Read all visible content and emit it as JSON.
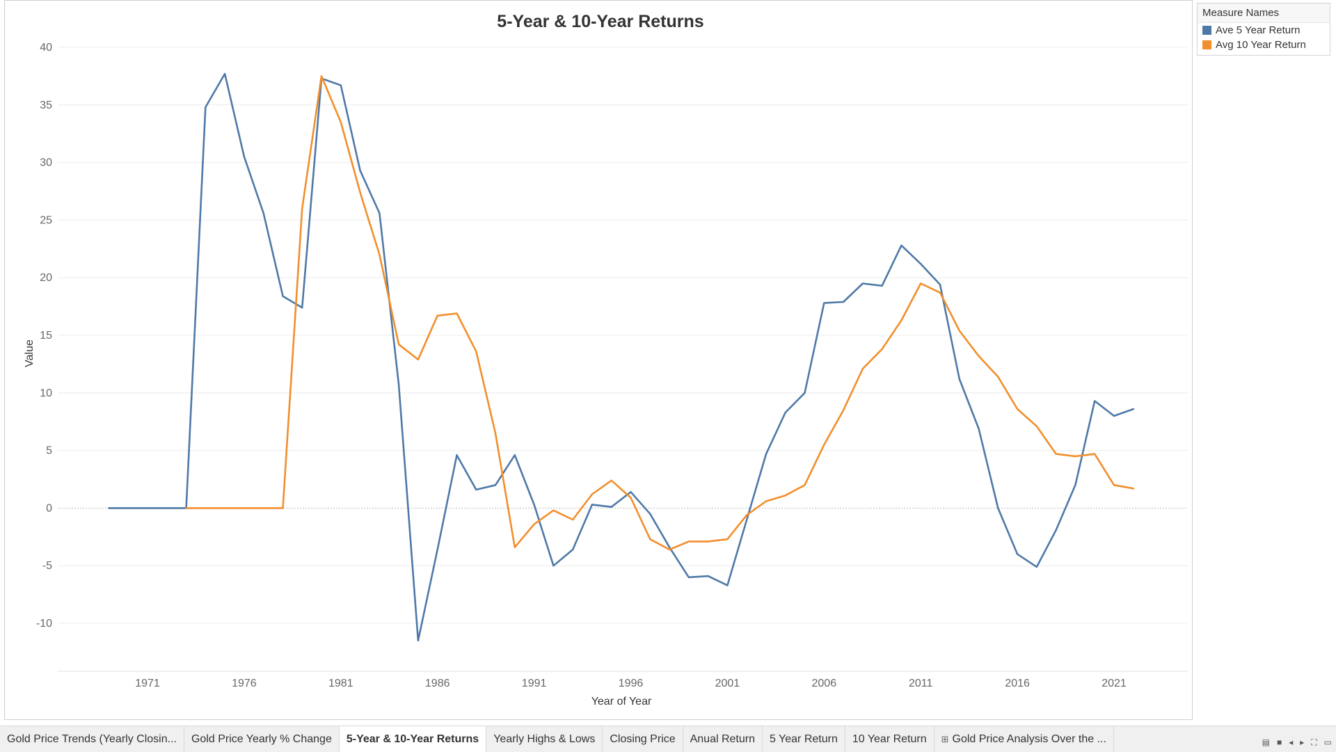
{
  "chart_data": {
    "type": "line",
    "title": "5-Year & 10-Year Returns",
    "xlabel": "Year of Year",
    "ylabel": "Value",
    "xlim": [
      1966,
      2025
    ],
    "ylim": [
      -14,
      40
    ],
    "x_ticks": [
      1971,
      1976,
      1981,
      1986,
      1991,
      1996,
      2001,
      2006,
      2011,
      2016,
      2021
    ],
    "y_ticks": [
      -10,
      -5,
      0,
      5,
      10,
      15,
      20,
      25,
      30,
      35,
      40
    ],
    "grid": true,
    "legend_position": "right",
    "series": [
      {
        "name": "Ave 5 Year Return",
        "color": "#4e79a7",
        "x": [
          1969,
          1970,
          1971,
          1972,
          1973,
          1974,
          1975,
          1976,
          1977,
          1978,
          1979,
          1980,
          1981,
          1982,
          1983,
          1984,
          1985,
          1986,
          1987,
          1988,
          1989,
          1990,
          1991,
          1992,
          1993,
          1994,
          1995,
          1996,
          1997,
          1998,
          1999,
          2000,
          2001,
          2002,
          2003,
          2004,
          2005,
          2006,
          2007,
          2008,
          2009,
          2010,
          2011,
          2012,
          2013,
          2014,
          2015,
          2016,
          2017,
          2018,
          2019,
          2020,
          2021,
          2022
        ],
        "y": [
          0,
          0,
          0,
          0,
          0,
          34.8,
          37.7,
          30.5,
          25.6,
          18.4,
          17.4,
          37.3,
          36.7,
          29.3,
          25.6,
          10.7,
          -11.5,
          -3.6,
          4.6,
          1.6,
          2.0,
          4.6,
          0.3,
          -5.0,
          -3.6,
          0.3,
          0.1,
          1.4,
          -0.5,
          -3.4,
          -6.0,
          -5.9,
          -6.7,
          -1.0,
          4.7,
          8.3,
          10.0,
          17.8,
          17.9,
          19.5,
          19.3,
          22.8,
          21.2,
          19.4,
          11.2,
          6.9,
          0,
          -4.0,
          -5.1,
          -1.9,
          2.0,
          9.3,
          8.0,
          8.6
        ]
      },
      {
        "name": "Avg 10 Year Return",
        "color": "#f28e2b",
        "x": [
          1973,
          1974,
          1975,
          1976,
          1977,
          1978,
          1979,
          1980,
          1981,
          1982,
          1983,
          1984,
          1985,
          1986,
          1987,
          1988,
          1989,
          1990,
          1991,
          1992,
          1993,
          1994,
          1995,
          1996,
          1997,
          1998,
          1999,
          2000,
          2001,
          2002,
          2003,
          2004,
          2005,
          2006,
          2007,
          2008,
          2009,
          2010,
          2011,
          2012,
          2013,
          2014,
          2015,
          2016,
          2017,
          2018,
          2019,
          2020,
          2021,
          2022
        ],
        "y": [
          0,
          0,
          0,
          0,
          0,
          0,
          26.0,
          37.5,
          33.5,
          27.4,
          22.0,
          14.2,
          12.9,
          16.7,
          16.9,
          13.6,
          6.5,
          -3.4,
          -1.4,
          -0.2,
          -1.0,
          1.2,
          2.4,
          0.9,
          -2.7,
          -3.6,
          -2.9,
          -2.9,
          -2.7,
          -0.6,
          0.6,
          1.1,
          2.0,
          5.5,
          8.5,
          12.1,
          13.8,
          16.3,
          19.5,
          18.7,
          15.4,
          13.2,
          11.4,
          8.6,
          7.1,
          4.7,
          4.5,
          4.7,
          2.0,
          1.7
        ]
      }
    ]
  },
  "legend": {
    "title": "Measure Names",
    "items": [
      "Ave 5 Year Return",
      "Avg 10 Year Return"
    ]
  },
  "tabs": [
    {
      "label": "Gold Price Trends (Yearly Closin...",
      "active": false,
      "icon": ""
    },
    {
      "label": "Gold Price Yearly % Change",
      "active": false,
      "icon": ""
    },
    {
      "label": "5-Year & 10-Year Returns",
      "active": true,
      "icon": ""
    },
    {
      "label": "Yearly Highs & Lows",
      "active": false,
      "icon": ""
    },
    {
      "label": "Closing Price",
      "active": false,
      "icon": ""
    },
    {
      "label": "Anual Return",
      "active": false,
      "icon": ""
    },
    {
      "label": "5 Year Return",
      "active": false,
      "icon": ""
    },
    {
      "label": "10 Year Return",
      "active": false,
      "icon": ""
    },
    {
      "label": "Gold Price Analysis Over the ...",
      "active": false,
      "icon": "dashboard-icon"
    }
  ],
  "tab_controls": [
    "sheet-sorter-icon",
    "filmstrip-icon",
    "prev-sheet-icon",
    "next-sheet-icon",
    "fullscreen-icon",
    "presentation-icon"
  ]
}
